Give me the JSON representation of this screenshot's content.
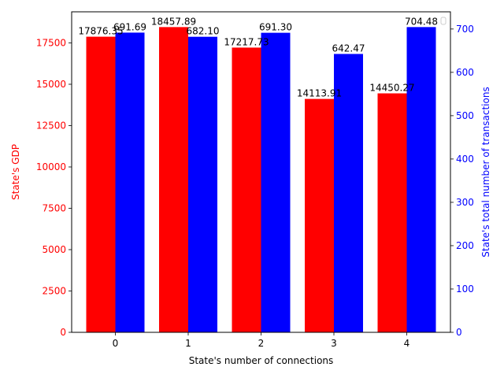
{
  "chart_data": {
    "type": "bar",
    "categories": [
      "0",
      "1",
      "2",
      "3",
      "4"
    ],
    "xlabel": "State's number of connections",
    "series": [
      {
        "axis": "left",
        "color": "#ff0000",
        "values": [
          17876.35,
          18457.89,
          17217.73,
          14113.91,
          14450.27
        ],
        "labels": [
          "17876.35",
          "18457.89",
          "17217.73",
          "14113.91",
          "14450.27"
        ]
      },
      {
        "axis": "right",
        "color": "#0000ff",
        "values": [
          691.69,
          682.1,
          691.3,
          642.47,
          704.48
        ],
        "labels": [
          "691.69",
          "682.10",
          "691.30",
          "642.47",
          "704.48"
        ]
      }
    ],
    "y_left": {
      "label": "State's GDP",
      "color": "#ff0000",
      "lim": [
        0,
        19380.78
      ],
      "ticks": [
        0,
        2500,
        5000,
        7500,
        10000,
        12500,
        15000,
        17500
      ]
    },
    "y_right": {
      "label": "State's total number of transactions",
      "color": "#0000ff",
      "lim": [
        0,
        739.7
      ],
      "ticks": [
        0,
        100,
        200,
        300,
        400,
        500,
        600,
        700
      ]
    },
    "grid": false,
    "legend": "top-right (empty)"
  }
}
